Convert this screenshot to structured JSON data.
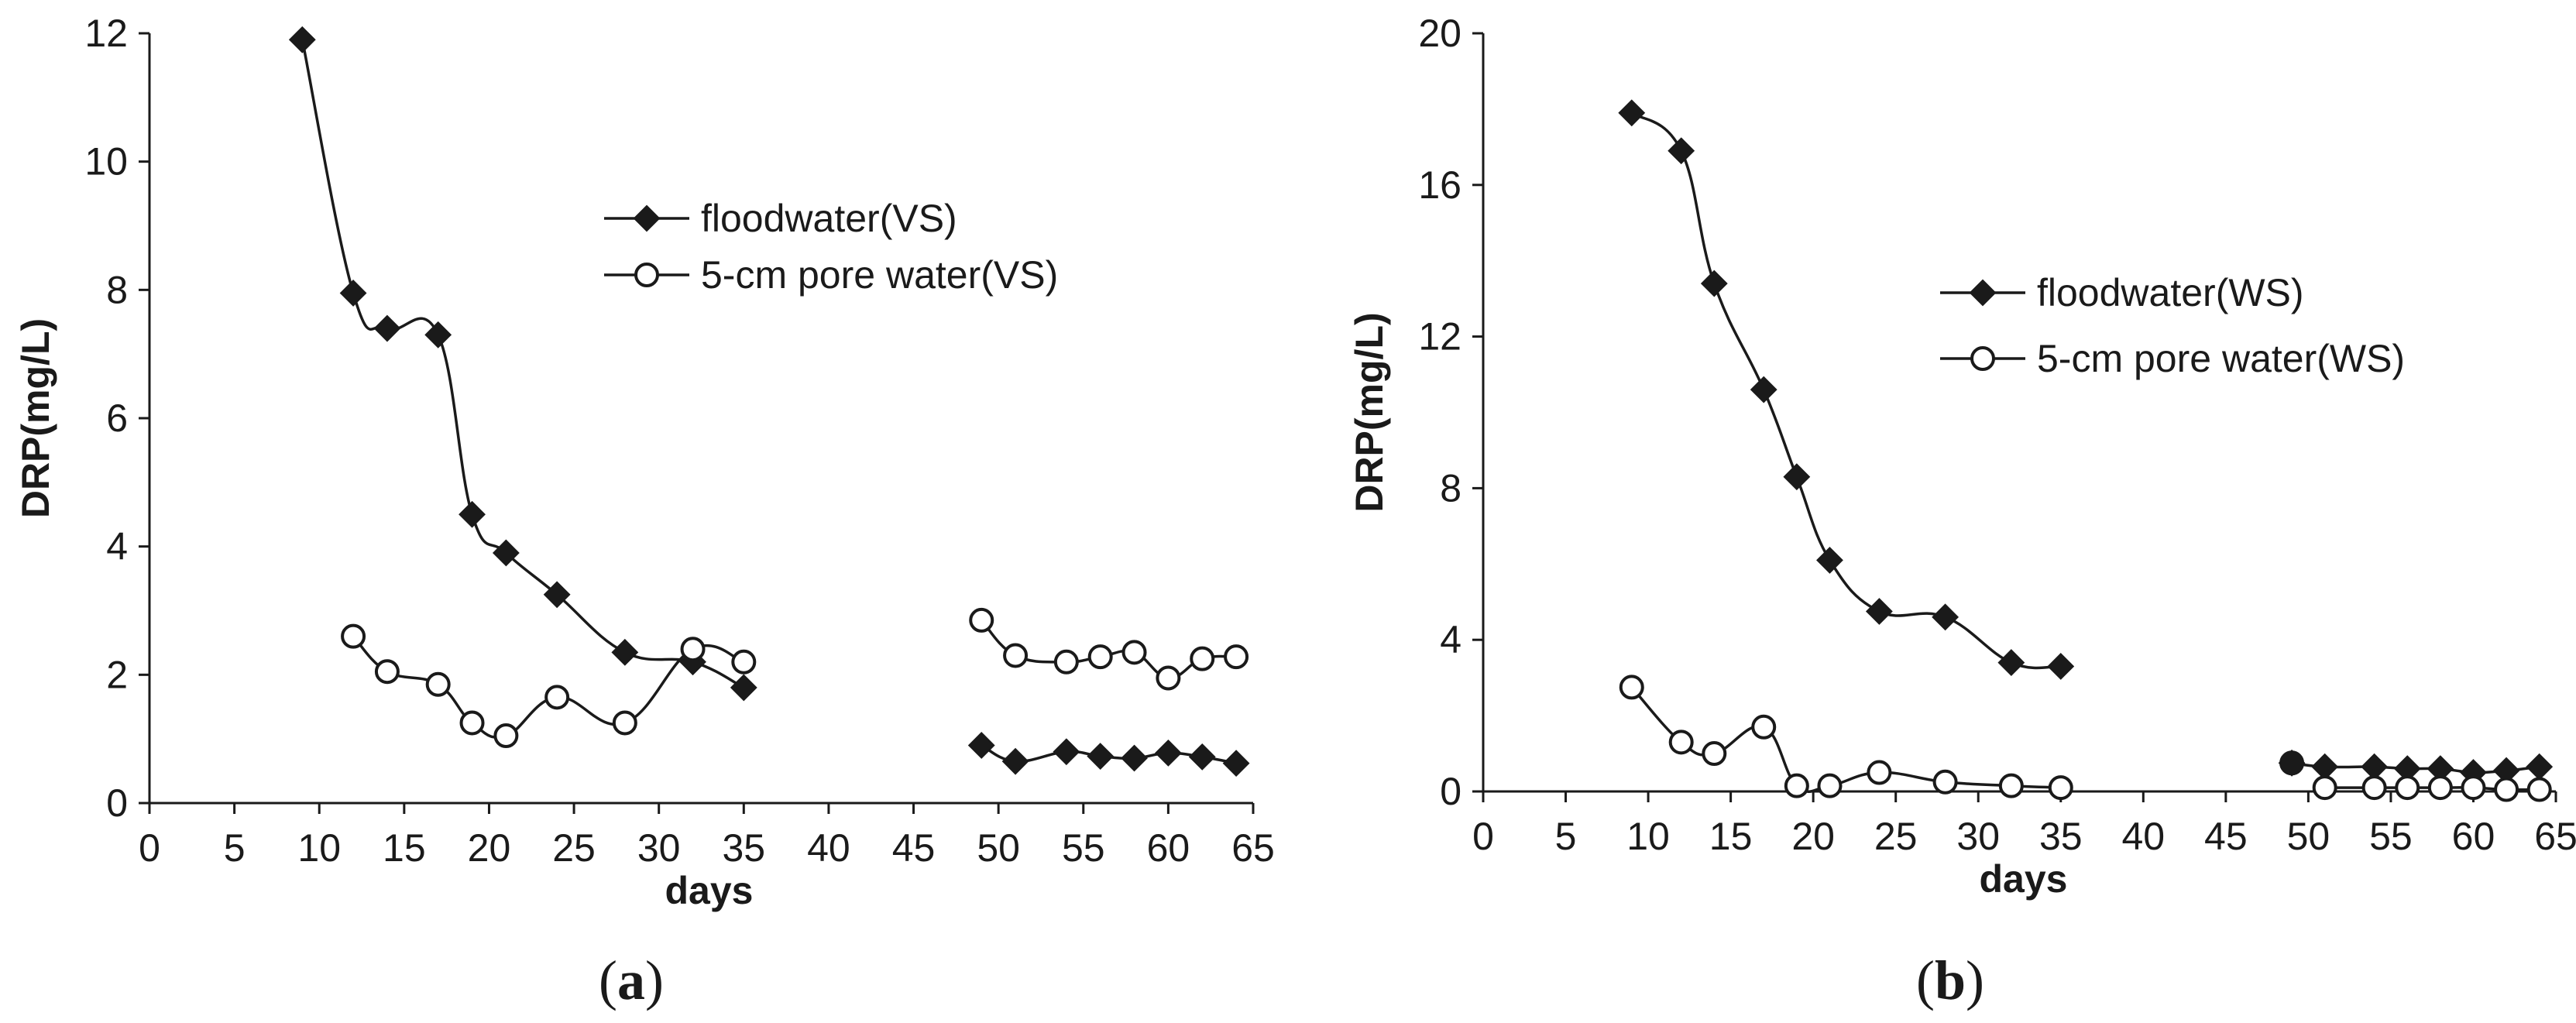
{
  "chart_data": [
    {
      "type": "line",
      "panel_label": "a",
      "xlabel": "days",
      "ylabel": "DRP(mg/L)",
      "xlim": [
        0,
        65
      ],
      "ylim": [
        0,
        12
      ],
      "xticks": [
        0,
        5,
        10,
        15,
        20,
        25,
        30,
        35,
        40,
        45,
        50,
        55,
        60,
        65
      ],
      "yticks": [
        0,
        2,
        4,
        6,
        8,
        10,
        12
      ],
      "legend_position": "upper-middle",
      "series": [
        {
          "name": "floodwater(VS)",
          "marker": "diamond-filled",
          "segments": [
            [
              [
                9,
                11.9
              ],
              [
                12,
                7.95
              ],
              [
                14,
                7.4
              ],
              [
                17,
                7.3
              ],
              [
                19,
                4.5
              ],
              [
                21,
                3.9
              ],
              [
                24,
                3.25
              ],
              [
                28,
                2.35
              ],
              [
                32,
                2.2
              ],
              [
                35,
                1.8
              ]
            ],
            [
              [
                49,
                0.9
              ],
              [
                51,
                0.65
              ],
              [
                54,
                0.8
              ],
              [
                56,
                0.73
              ],
              [
                58,
                0.7
              ],
              [
                60,
                0.78
              ],
              [
                62,
                0.72
              ],
              [
                64,
                0.62
              ]
            ]
          ]
        },
        {
          "name": "5-cm pore water(VS)",
          "marker": "circle-open",
          "segments": [
            [
              [
                12,
                2.6
              ],
              [
                14,
                2.05
              ],
              [
                17,
                1.85
              ],
              [
                19,
                1.25
              ],
              [
                21,
                1.05
              ],
              [
                24,
                1.65
              ],
              [
                28,
                1.25
              ],
              [
                32,
                2.4
              ],
              [
                35,
                2.2
              ]
            ],
            [
              [
                49,
                2.85
              ],
              [
                51,
                2.3
              ],
              [
                54,
                2.2
              ],
              [
                56,
                2.28
              ],
              [
                58,
                2.35
              ],
              [
                60,
                1.95
              ],
              [
                62,
                2.25
              ],
              [
                64,
                2.28
              ]
            ]
          ]
        }
      ]
    },
    {
      "type": "line",
      "panel_label": "b",
      "xlabel": "days",
      "ylabel": "DRP(mg/L)",
      "xlim": [
        0,
        65
      ],
      "ylim": [
        0,
        20
      ],
      "xticks": [
        0,
        5,
        10,
        15,
        20,
        25,
        30,
        35,
        40,
        45,
        50,
        55,
        60,
        65
      ],
      "yticks": [
        0,
        4,
        8,
        12,
        16,
        20
      ],
      "legend_position": "middle-right",
      "series": [
        {
          "name": "floodwater(WS)",
          "marker": "diamond-filled",
          "segments": [
            [
              [
                9,
                17.9
              ],
              [
                12,
                16.9
              ],
              [
                14,
                13.4
              ],
              [
                17,
                10.6
              ],
              [
                19,
                8.3
              ],
              [
                21,
                6.1
              ],
              [
                24,
                4.75
              ],
              [
                28,
                4.6
              ],
              [
                32,
                3.4
              ],
              [
                35,
                3.3
              ]
            ],
            [
              [
                49,
                0.75
              ],
              [
                51,
                0.65
              ],
              [
                54,
                0.65
              ],
              [
                56,
                0.6
              ],
              [
                58,
                0.6
              ],
              [
                60,
                0.5
              ],
              [
                62,
                0.55
              ],
              [
                64,
                0.65
              ]
            ]
          ]
        },
        {
          "name": "5-cm pore water(WS)",
          "marker": "circle-open",
          "segments": [
            [
              [
                9,
                2.75
              ],
              [
                12,
                1.3
              ],
              [
                14,
                1.0
              ],
              [
                17,
                1.7
              ],
              [
                19,
                0.15
              ],
              [
                21,
                0.15
              ],
              [
                24,
                0.5
              ],
              [
                28,
                0.25
              ],
              [
                32,
                0.15
              ],
              [
                35,
                0.1
              ]
            ],
            [
              [
                51,
                0.1
              ],
              [
                54,
                0.1
              ],
              [
                56,
                0.1
              ],
              [
                58,
                0.1
              ],
              [
                60,
                0.1
              ],
              [
                62,
                0.05
              ],
              [
                64,
                0.05
              ]
            ]
          ]
        }
      ]
    }
  ]
}
